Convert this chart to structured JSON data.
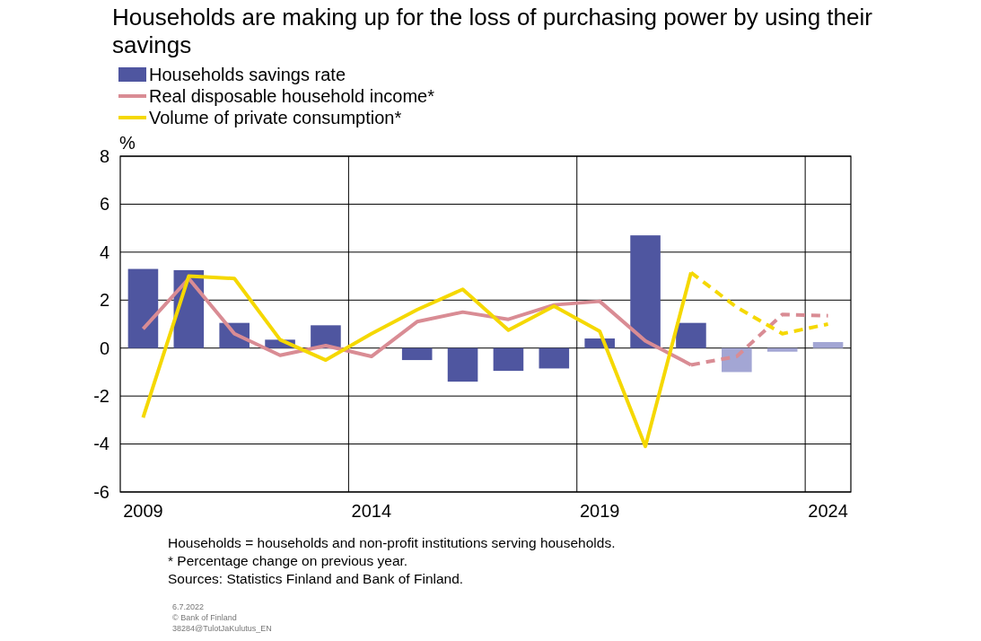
{
  "chart_data": {
    "type": "bar",
    "title": "Households are making up for the loss of purchasing power by using their savings",
    "ylabel": "%",
    "categories": [
      "2009",
      null,
      null,
      null,
      null,
      "2014",
      null,
      null,
      null,
      null,
      "2019",
      null,
      null,
      null,
      null,
      "2024"
    ],
    "series": [
      {
        "name": "Households savings rate",
        "color": "#4f56a0",
        "colors": [
          "#4f56a0",
          "#4f56a0",
          "#4f56a0",
          "#4f56a0",
          "#4f56a0",
          "#4f56a0",
          "#4f56a0",
          "#4f56a0",
          "#4f56a0",
          "#4f56a0",
          "#4f56a0",
          "#4f56a0",
          "#4f56a0",
          "#a3a6d4",
          "#a3a6d4",
          "#a3a6d4"
        ],
        "values": [
          3.3,
          3.25,
          1.05,
          0.35,
          0.95,
          0,
          -0.5,
          -1.4,
          -0.95,
          -0.85,
          0.4,
          4.7,
          1.05,
          -1.0,
          -0.15,
          0.25
        ]
      },
      {
        "type": "line",
        "name": "Real disposable household income*",
        "color": "#d98c94",
        "line_style": "solid",
        "values": [
          0.8,
          2.9,
          0.6,
          -0.3,
          0.1,
          -0.35,
          1.1,
          1.5,
          1.2,
          1.8,
          1.95,
          0.3,
          -0.7,
          null,
          null,
          null
        ]
      },
      {
        "type": "line",
        "name": "Volume of private consumption*",
        "color": "#f5d800",
        "line_style": "solid",
        "values": [
          -2.9,
          3.0,
          2.9,
          0.35,
          -0.5,
          0.6,
          1.6,
          2.45,
          0.75,
          1.75,
          0.7,
          -4.1,
          3.15,
          null,
          null,
          null
        ]
      },
      {
        "type": "line",
        "color": "#d98c94",
        "line_style": "dashed",
        "values": [
          null,
          null,
          null,
          null,
          null,
          null,
          null,
          null,
          null,
          null,
          null,
          null,
          -0.7,
          -0.35,
          1.4,
          1.35
        ]
      },
      {
        "type": "line",
        "color": "#f5d800",
        "line_style": "dashed",
        "values": [
          null,
          null,
          null,
          null,
          null,
          null,
          null,
          null,
          null,
          null,
          null,
          null,
          3.15,
          1.7,
          0.6,
          1.0
        ]
      }
    ],
    "ylim": [
      -6,
      8
    ],
    "yticks": [
      -6,
      -4,
      -2,
      0,
      2,
      4,
      6,
      8
    ],
    "grid": true,
    "legend": "top left",
    "annotations": [
      "Households = households and non-profit institutions serving households.",
      "* Percentage change on previous year.",
      "Sources: Statistics Finland and Bank of Finland.",
      "6.7.2022",
      "© Bank of Finland",
      "38284@TulotJaKulutus_EN"
    ]
  }
}
